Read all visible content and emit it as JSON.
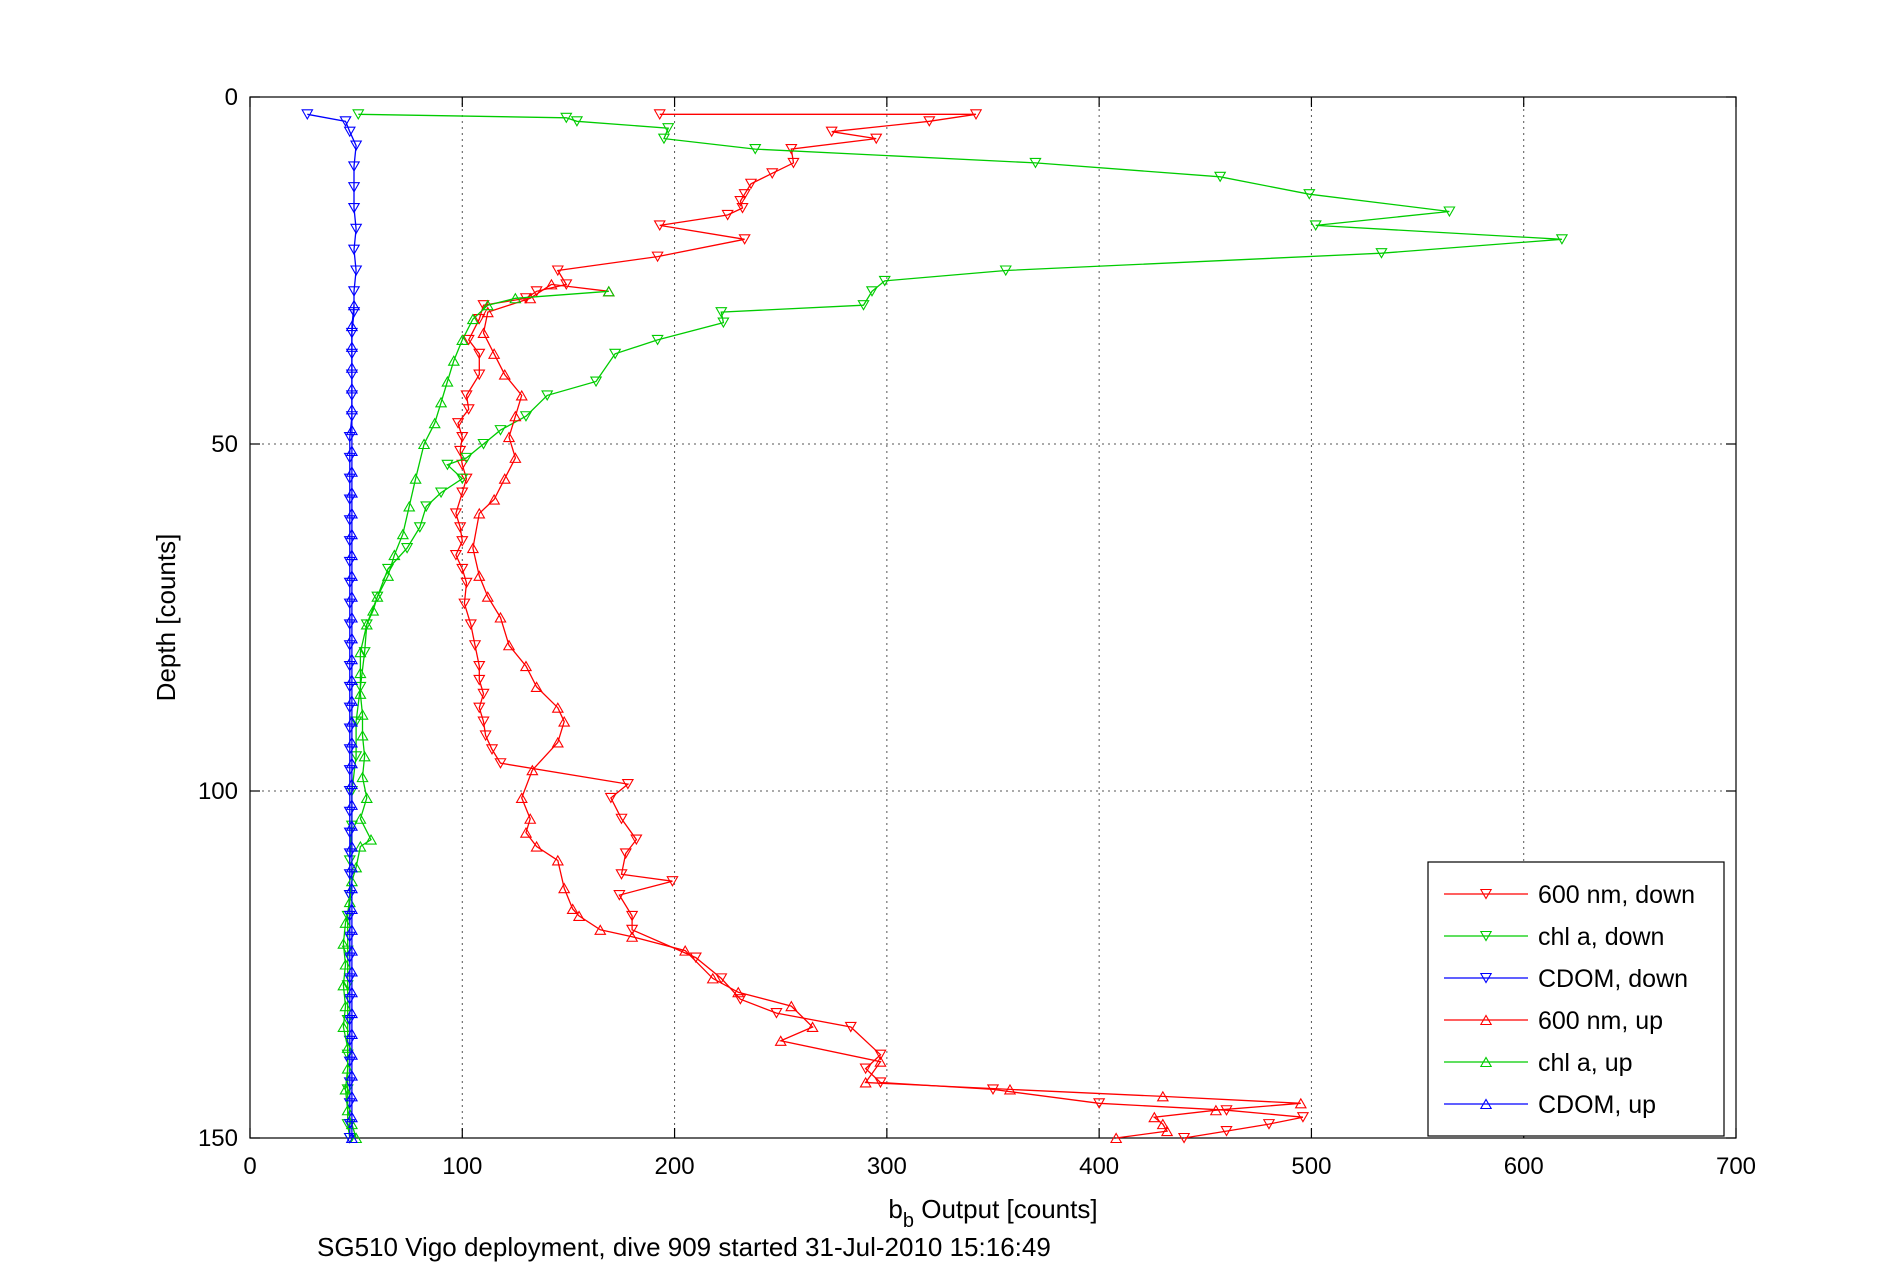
{
  "chart_data": {
    "type": "line",
    "title": "",
    "xlabel_main": "b",
    "xlabel_sub": "b",
    "xlabel_rest": " Output [counts]",
    "ylabel": "Depth [counts]",
    "caption": "SG510 Vigo deployment, dive 909 started 31-Jul-2010 15:16:49",
    "xlim": [
      0,
      700
    ],
    "ylim": [
      0,
      150
    ],
    "y_reversed": true,
    "grid": true,
    "xticks": [
      "0",
      "100",
      "200",
      "300",
      "400",
      "500",
      "600",
      "700"
    ],
    "yticks": [
      "0",
      "50",
      "100",
      "150"
    ],
    "legend_position": "bottom-right",
    "series": [
      {
        "name": "600 nm, down",
        "color": "#ff0000",
        "marker": "triangle-down",
        "points": [
          [
            193,
            2.5
          ],
          [
            342,
            2.5
          ],
          [
            320,
            3.5
          ],
          [
            274,
            5
          ],
          [
            295,
            6
          ],
          [
            255,
            7.5
          ],
          [
            256,
            9.5
          ],
          [
            246,
            11
          ],
          [
            236,
            12.5
          ],
          [
            233,
            14
          ],
          [
            231,
            15
          ],
          [
            232,
            16
          ],
          [
            225,
            17
          ],
          [
            193,
            18.5
          ],
          [
            233,
            20.5
          ],
          [
            192,
            23
          ],
          [
            145,
            25
          ],
          [
            149,
            27
          ],
          [
            135,
            28
          ],
          [
            130,
            29
          ],
          [
            110,
            30
          ],
          [
            108,
            32
          ],
          [
            103,
            35
          ],
          [
            108,
            37
          ],
          [
            108,
            40
          ],
          [
            102,
            43
          ],
          [
            103,
            45
          ],
          [
            98,
            47
          ],
          [
            100,
            49
          ],
          [
            99,
            51
          ],
          [
            100,
            53
          ],
          [
            102,
            55
          ],
          [
            100,
            57
          ],
          [
            97,
            60
          ],
          [
            99,
            62
          ],
          [
            100,
            64
          ],
          [
            97,
            66
          ],
          [
            100,
            68
          ],
          [
            102,
            70
          ],
          [
            101,
            73
          ],
          [
            104,
            76
          ],
          [
            106,
            79
          ],
          [
            108,
            82
          ],
          [
            108,
            84
          ],
          [
            110,
            86
          ],
          [
            108,
            88
          ],
          [
            110,
            90
          ],
          [
            111,
            92
          ],
          [
            114,
            94
          ],
          [
            118,
            96
          ],
          [
            178,
            99
          ],
          [
            170,
            101
          ],
          [
            175,
            104
          ],
          [
            182,
            107
          ],
          [
            177,
            109
          ],
          [
            175,
            112
          ],
          [
            199,
            113
          ],
          [
            174,
            115
          ],
          [
            180,
            118
          ],
          [
            180,
            120
          ],
          [
            210,
            124
          ],
          [
            222,
            127
          ],
          [
            231,
            130
          ],
          [
            248,
            132
          ],
          [
            283,
            134
          ],
          [
            297,
            138
          ],
          [
            290,
            140
          ],
          [
            297,
            142
          ],
          [
            350,
            143
          ],
          [
            400,
            145
          ],
          [
            460,
            146
          ],
          [
            496,
            147
          ],
          [
            480,
            148
          ],
          [
            460,
            149
          ],
          [
            440,
            150
          ]
        ]
      },
      {
        "name": "chl a, down",
        "color": "#00cc00",
        "marker": "triangle-down",
        "points": [
          [
            51,
            2.5
          ],
          [
            149,
            3
          ],
          [
            154,
            3.5
          ],
          [
            197,
            4.5
          ],
          [
            195,
            6
          ],
          [
            238,
            7.5
          ],
          [
            370,
            9.5
          ],
          [
            457,
            11.5
          ],
          [
            499,
            14
          ],
          [
            565,
            16.5
          ],
          [
            502,
            18.5
          ],
          [
            618,
            20.5
          ],
          [
            533,
            22.5
          ],
          [
            356,
            25
          ],
          [
            299,
            26.5
          ],
          [
            293,
            28
          ],
          [
            289,
            30
          ],
          [
            222,
            31
          ],
          [
            223,
            32.5
          ],
          [
            192,
            35
          ],
          [
            172,
            37
          ],
          [
            163,
            41
          ],
          [
            140,
            43
          ],
          [
            130,
            46
          ],
          [
            118,
            48
          ],
          [
            110,
            50
          ],
          [
            102,
            52
          ],
          [
            93,
            53
          ],
          [
            100,
            55
          ],
          [
            90,
            57
          ],
          [
            83,
            59
          ],
          [
            80,
            62
          ],
          [
            74,
            65
          ],
          [
            65,
            68
          ],
          [
            60,
            72
          ],
          [
            55,
            76
          ],
          [
            54,
            80
          ],
          [
            52,
            85
          ],
          [
            50,
            90
          ],
          [
            50,
            95
          ],
          [
            48,
            100
          ],
          [
            48,
            105
          ],
          [
            47,
            110
          ],
          [
            47,
            115
          ],
          [
            46,
            118
          ],
          [
            46,
            123
          ],
          [
            46,
            128
          ],
          [
            46,
            133
          ],
          [
            46,
            138
          ],
          [
            46,
            143
          ],
          [
            46,
            148
          ],
          [
            47,
            150
          ]
        ]
      },
      {
        "name": "CDOM, down",
        "color": "#0000ff",
        "marker": "triangle-down",
        "points": [
          [
            27,
            2.5
          ],
          [
            45,
            3.5
          ],
          [
            47,
            5
          ],
          [
            50,
            7
          ],
          [
            49,
            10
          ],
          [
            49,
            13
          ],
          [
            49,
            16
          ],
          [
            50,
            19
          ],
          [
            49,
            22
          ],
          [
            50,
            25
          ],
          [
            49,
            28
          ],
          [
            49,
            31
          ],
          [
            48,
            34
          ],
          [
            48,
            37
          ],
          [
            48,
            40
          ],
          [
            48,
            43
          ],
          [
            48,
            46
          ],
          [
            47,
            49
          ],
          [
            47,
            52
          ],
          [
            47,
            55
          ],
          [
            47,
            58
          ],
          [
            47,
            61
          ],
          [
            47,
            64
          ],
          [
            47,
            67
          ],
          [
            47,
            70
          ],
          [
            47,
            73
          ],
          [
            47,
            76
          ],
          [
            47,
            79
          ],
          [
            47,
            82
          ],
          [
            47,
            85
          ],
          [
            47,
            88
          ],
          [
            47,
            91
          ],
          [
            47,
            94
          ],
          [
            47,
            97
          ],
          [
            47,
            100
          ],
          [
            47,
            103
          ],
          [
            47,
            106
          ],
          [
            47,
            109
          ],
          [
            47,
            112
          ],
          [
            47,
            115
          ],
          [
            47,
            118
          ],
          [
            47,
            121
          ],
          [
            47,
            124
          ],
          [
            47,
            127
          ],
          [
            47,
            130
          ],
          [
            47,
            133
          ],
          [
            47,
            136
          ],
          [
            47,
            139
          ],
          [
            47,
            142
          ],
          [
            47,
            145
          ],
          [
            47,
            148
          ],
          [
            47,
            150
          ]
        ]
      },
      {
        "name": "600 nm, up",
        "color": "#ff0000",
        "marker": "triangle-up",
        "points": [
          [
            408,
            150
          ],
          [
            432,
            149
          ],
          [
            430,
            148
          ],
          [
            426,
            147
          ],
          [
            455,
            146
          ],
          [
            495,
            145
          ],
          [
            430,
            144
          ],
          [
            358,
            143
          ],
          [
            290,
            142
          ],
          [
            297,
            139
          ],
          [
            250,
            136
          ],
          [
            265,
            134
          ],
          [
            255,
            131
          ],
          [
            230,
            129
          ],
          [
            218,
            127
          ],
          [
            205,
            123
          ],
          [
            180,
            121
          ],
          [
            165,
            120
          ],
          [
            155,
            118
          ],
          [
            152,
            117
          ],
          [
            148,
            114
          ],
          [
            145,
            110
          ],
          [
            135,
            108
          ],
          [
            130,
            106
          ],
          [
            132,
            104
          ],
          [
            128,
            101
          ],
          [
            133,
            97
          ],
          [
            145,
            93
          ],
          [
            148,
            90
          ],
          [
            145,
            88
          ],
          [
            135,
            85
          ],
          [
            130,
            82
          ],
          [
            122,
            79
          ],
          [
            118,
            75
          ],
          [
            112,
            72
          ],
          [
            108,
            69
          ],
          [
            105,
            65
          ],
          [
            108,
            60
          ],
          [
            115,
            58
          ],
          [
            120,
            55
          ],
          [
            125,
            52
          ],
          [
            122,
            49
          ],
          [
            125,
            46
          ],
          [
            128,
            43
          ],
          [
            120,
            40
          ],
          [
            115,
            37
          ],
          [
            110,
            34
          ],
          [
            112,
            31
          ],
          [
            132,
            29
          ],
          [
            142,
            27
          ],
          [
            169,
            28
          ]
        ]
      },
      {
        "name": "chl a, up",
        "color": "#00cc00",
        "marker": "triangle-up",
        "points": [
          [
            50,
            150
          ],
          [
            48,
            148
          ],
          [
            46,
            146
          ],
          [
            45,
            143
          ],
          [
            46,
            140
          ],
          [
            46,
            137
          ],
          [
            44,
            134
          ],
          [
            45,
            131
          ],
          [
            44,
            128
          ],
          [
            45,
            125
          ],
          [
            44,
            122
          ],
          [
            45,
            119
          ],
          [
            47,
            116
          ],
          [
            48,
            113
          ],
          [
            50,
            111
          ],
          [
            52,
            108
          ],
          [
            57,
            107
          ],
          [
            52,
            104
          ],
          [
            55,
            101
          ],
          [
            53,
            98
          ],
          [
            54,
            95
          ],
          [
            53,
            92
          ],
          [
            53,
            89
          ],
          [
            52,
            86
          ],
          [
            52,
            83
          ],
          [
            52,
            80
          ],
          [
            55,
            76
          ],
          [
            58,
            74
          ],
          [
            60,
            72
          ],
          [
            65,
            69
          ],
          [
            68,
            66
          ],
          [
            72,
            63
          ],
          [
            75,
            59
          ],
          [
            78,
            55
          ],
          [
            82,
            50
          ],
          [
            87,
            47
          ],
          [
            90,
            44
          ],
          [
            93,
            41
          ],
          [
            96,
            38
          ],
          [
            100,
            35
          ],
          [
            105,
            32
          ],
          [
            112,
            30
          ],
          [
            125,
            29
          ],
          [
            169,
            28
          ]
        ]
      },
      {
        "name": "CDOM, up",
        "color": "#0000ff",
        "marker": "triangle-up",
        "points": [
          [
            48,
            150
          ],
          [
            48,
            147
          ],
          [
            48,
            144
          ],
          [
            48,
            141
          ],
          [
            48,
            138
          ],
          [
            48,
            135
          ],
          [
            48,
            132
          ],
          [
            48,
            129
          ],
          [
            48,
            126
          ],
          [
            48,
            123
          ],
          [
            48,
            120
          ],
          [
            48,
            117
          ],
          [
            48,
            114
          ],
          [
            48,
            111
          ],
          [
            48,
            108
          ],
          [
            48,
            105
          ],
          [
            48,
            102
          ],
          [
            48,
            99
          ],
          [
            48,
            96
          ],
          [
            48,
            93
          ],
          [
            48,
            90
          ],
          [
            48,
            87
          ],
          [
            48,
            84
          ],
          [
            48,
            81
          ],
          [
            48,
            78
          ],
          [
            48,
            75
          ],
          [
            48,
            72
          ],
          [
            48,
            69
          ],
          [
            48,
            66
          ],
          [
            48,
            63
          ],
          [
            48,
            60
          ],
          [
            48,
            57
          ],
          [
            48,
            54
          ],
          [
            48,
            51
          ],
          [
            48,
            48
          ],
          [
            48,
            45
          ],
          [
            48,
            42
          ],
          [
            48,
            39
          ],
          [
            48,
            36
          ],
          [
            48,
            33
          ],
          [
            49,
            30
          ]
        ]
      }
    ]
  }
}
